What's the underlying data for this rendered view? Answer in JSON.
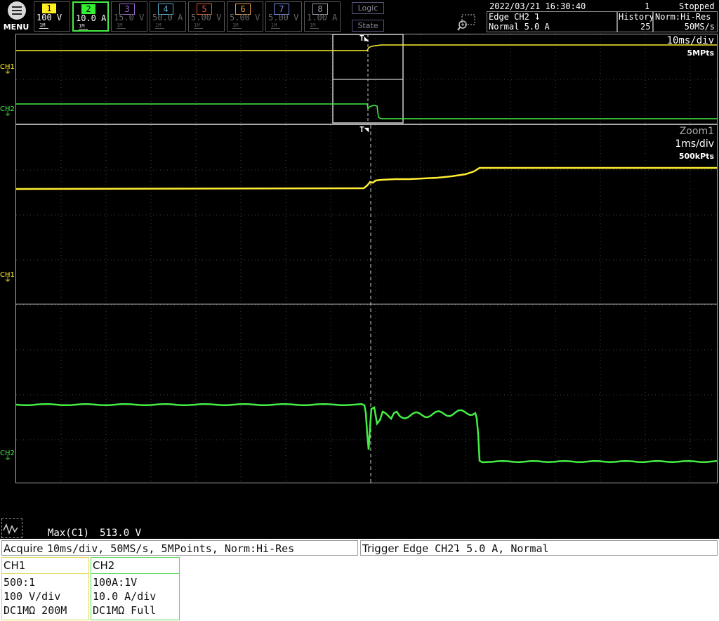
{
  "menu": {
    "label": "MENU"
  },
  "channels": [
    {
      "num": "1",
      "value": "100 V",
      "color": "#ffee22",
      "active": true
    },
    {
      "num": "2",
      "value": "10.0 A",
      "color": "#33ee33",
      "active": true
    },
    {
      "num": "3",
      "value": "15.0 V",
      "color": "#9966cc",
      "active": false
    },
    {
      "num": "4",
      "value": "50.0 A",
      "color": "#55aacc",
      "active": false
    },
    {
      "num": "5",
      "value": "5.00 V",
      "color": "#dd5533",
      "active": false
    },
    {
      "num": "6",
      "value": "5.00 V",
      "color": "#dd9944",
      "active": false
    },
    {
      "num": "7",
      "value": "5.00 V",
      "color": "#7788dd",
      "active": false
    },
    {
      "num": "8",
      "value": "1.00 A",
      "color": "#9999aa",
      "active": false
    }
  ],
  "logic": {
    "logic_label": "Logic",
    "state_label": "State"
  },
  "header": {
    "datetime": "2022/03/21 16:30:40",
    "count": "1",
    "status": "Stopped",
    "trigger_line1": "Edge CH2 ⮧",
    "trigger_line2": "Normal 5.0 A",
    "history_label": "History",
    "history_value": "25",
    "acq_mode": "Norm:Hi-Res",
    "sample_rate": "50MS/s"
  },
  "main": {
    "timebase": "10ms/div",
    "points": "5MPts",
    "ch1_label": "CH1",
    "ch2_label": "CH2"
  },
  "zoom": {
    "label": "Zoom1",
    "timebase": "1ms/div",
    "points": "500kPts",
    "ch1_label": "CH1",
    "ch2_label": "CH2"
  },
  "measure": {
    "label": "Max(C1)",
    "value": "513.0 V"
  },
  "acquire": {
    "label": "Acquire",
    "text": "10ms/div, 50MS/s, 5MPoints, Norm:Hi-Res"
  },
  "trigger": {
    "label": "Trigger",
    "text": "Edge CH2⮧ 5.0 A, Normal"
  },
  "ch1_panel": {
    "title": "CH1",
    "probe": "500:1",
    "scale": "100 V/div",
    "coupling": "DC1MΩ 200M"
  },
  "ch2_panel": {
    "title": "CH2",
    "probe": "100A:1V",
    "scale": "10.0 A/div",
    "coupling": "DC1MΩ Full"
  }
}
